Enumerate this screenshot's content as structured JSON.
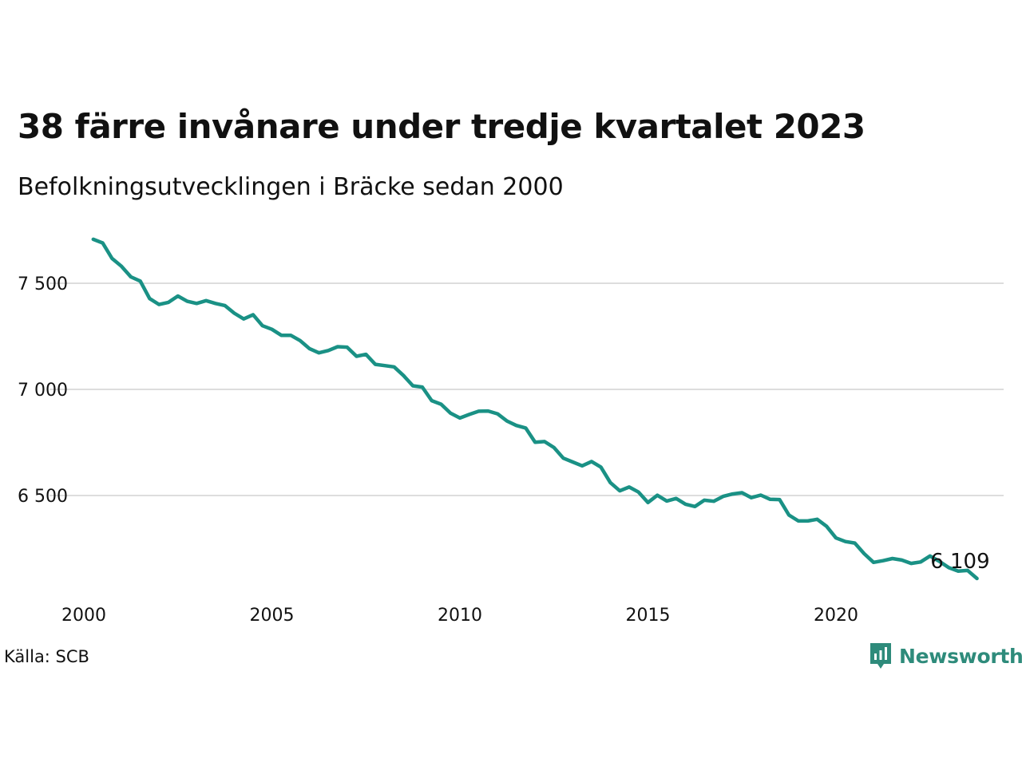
{
  "title": "38 färre invånare under tredje kvartalet 2023",
  "subtitle": "Befolkningsutvecklingen i Bräcke sedan 2000",
  "source": "Källa: SCB",
  "brand": {
    "name": "Newsworthy",
    "color": "#2e8b7b",
    "icon": "newsworthy-logo-icon"
  },
  "chart_data": {
    "type": "line",
    "color": "#1a9185",
    "grid": true,
    "xlim": [
      2000,
      2024
    ],
    "ylim": [
      6050,
      7720
    ],
    "x_ticks": [
      2000,
      2005,
      2010,
      2015,
      2020
    ],
    "x_tick_labels": [
      "2000",
      "2005",
      "2010",
      "2015",
      "2020"
    ],
    "y_ticks": [
      6500,
      7000,
      7500
    ],
    "y_tick_labels": [
      "6 500",
      "7 000",
      "7 500"
    ],
    "end_label": "6 109",
    "series": [
      {
        "x": [
          2000.25,
          2000.5,
          2000.75,
          2001.0,
          2001.25,
          2001.5,
          2001.75,
          2002.0,
          2002.25,
          2002.5,
          2002.75,
          2003.0,
          2003.25,
          2003.5,
          2003.75,
          2004.0,
          2004.25,
          2004.5,
          2004.75,
          2005.0,
          2005.25,
          2005.5,
          2005.75,
          2006.0,
          2006.25,
          2006.5,
          2006.75,
          2007.0,
          2007.25,
          2007.5,
          2007.75,
          2008.0,
          2008.25,
          2008.5,
          2008.75,
          2009.0,
          2009.25,
          2009.5,
          2009.75,
          2010.0,
          2010.25,
          2010.5,
          2010.75,
          2011.0,
          2011.25,
          2011.5,
          2011.75,
          2012.0,
          2012.25,
          2012.5,
          2012.75,
          2013.0,
          2013.25,
          2013.5,
          2013.75,
          2014.0,
          2014.25,
          2014.5,
          2014.75,
          2015.0,
          2015.25,
          2015.5,
          2015.75,
          2016.0,
          2016.25,
          2016.5,
          2016.75,
          2017.0,
          2017.25,
          2017.5,
          2017.75,
          2018.0,
          2018.25,
          2018.5,
          2018.75,
          2019.0,
          2019.25,
          2019.5,
          2019.75,
          2020.0,
          2020.25,
          2020.5,
          2020.75,
          2021.0,
          2021.25,
          2021.5,
          2021.75,
          2022.0,
          2022.25,
          2022.5,
          2022.75,
          2023.0,
          2023.25,
          2023.5,
          2023.75
        ],
        "values": [
          7707,
          7690,
          7617,
          7580,
          7530,
          7510,
          7428,
          7400,
          7410,
          7440,
          7415,
          7405,
          7418,
          7405,
          7395,
          7359,
          7332,
          7352,
          7300,
          7283,
          7255,
          7255,
          7230,
          7192,
          7172,
          7183,
          7201,
          7199,
          7156,
          7165,
          7118,
          7112,
          7106,
          7065,
          7017,
          7011,
          6947,
          6930,
          6888,
          6865,
          6882,
          6897,
          6898,
          6885,
          6851,
          6830,
          6818,
          6751,
          6754,
          6726,
          6676,
          6658,
          6640,
          6660,
          6634,
          6561,
          6522,
          6540,
          6516,
          6467,
          6501,
          6474,
          6486,
          6459,
          6448,
          6478,
          6473,
          6496,
          6507,
          6513,
          6490,
          6502,
          6482,
          6481,
          6408,
          6380,
          6380,
          6388,
          6355,
          6300,
          6283,
          6276,
          6226,
          6185,
          6193,
          6203,
          6196,
          6180,
          6187,
          6215,
          6190,
          6160,
          6144,
          6147,
          6109
        ]
      }
    ]
  }
}
